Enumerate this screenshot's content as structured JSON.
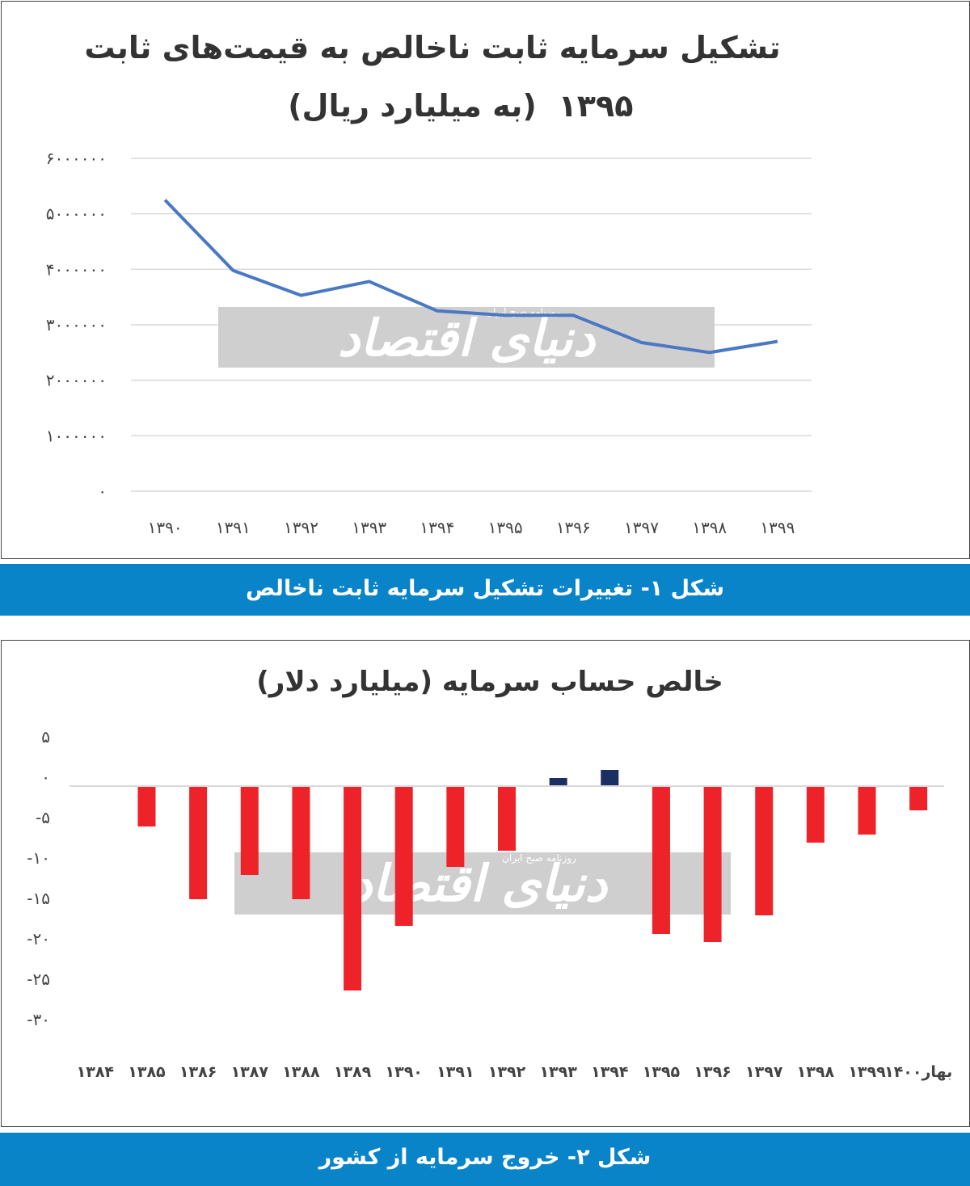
{
  "watermark": {
    "brand": "دنیای اقتصاد",
    "tagline": "روزنامه صبح ایران"
  },
  "figure1": {
    "caption": "شکل ۱- تغییرات تشکیل سرمایه ثابت ناخالص"
  },
  "figure2": {
    "caption": "شکل ۲- خروج سرمایه از کشور"
  },
  "chart_data": [
    {
      "type": "line",
      "title": "تشکیل سرمایه ثابت ناخالص به قیمت‌های ثابت",
      "subtitle_year": "۱۳۹۵",
      "subtitle_unit": "(به میلیارد ریال)",
      "categories": [
        "۱۳۹۰",
        "۱۳۹۱",
        "۱۳۹۲",
        "۱۳۹۳",
        "۱۳۹۴",
        "۱۳۹۵",
        "۱۳۹۶",
        "۱۳۹۷",
        "۱۳۹۸",
        "۱۳۹۹"
      ],
      "values": [
        5250000,
        3980000,
        3530000,
        3780000,
        3250000,
        3170000,
        3170000,
        2680000,
        2500000,
        2700000
      ],
      "yticks": [
        "۰",
        "۱۰۰۰۰۰۰",
        "۲۰۰۰۰۰۰",
        "۳۰۰۰۰۰۰",
        "۴۰۰۰۰۰۰",
        "۵۰۰۰۰۰۰",
        "۶۰۰۰۰۰۰"
      ],
      "ylim": [
        0,
        6000000
      ],
      "grid": true,
      "line_color": "#4a78c2"
    },
    {
      "type": "bar",
      "title": "خالص حساب سرمایه (میلیارد دلار)",
      "categories": [
        "۱۳۸۴",
        "۱۳۸۵",
        "۱۳۸۶",
        "۱۳۸۷",
        "۱۳۸۸",
        "۱۳۸۹",
        "۱۳۹۰",
        "۱۳۹۱",
        "۱۳۹۲",
        "۱۳۹۳",
        "۱۳۹۴",
        "۱۳۹۵",
        "۱۳۹۶",
        "۱۳۹۷",
        "۱۳۹۸",
        "۱۳۹۹",
        "بهار۱۴۰۰"
      ],
      "values": [
        0,
        -5,
        -14,
        -11,
        -14,
        -25.3,
        -17.3,
        -10,
        -8,
        1,
        2,
        -18.3,
        -19.3,
        -16,
        -7,
        -6,
        -3
      ],
      "yticks": [
        "۵",
        "۰",
        "-۵",
        "-۱۰",
        "-۱۵",
        "-۲۰",
        "-۲۵",
        "-۳۰"
      ],
      "ytick_values": [
        5,
        0,
        -5,
        -10,
        -15,
        -20,
        -25,
        -30
      ],
      "ylim": [
        -30,
        5
      ],
      "grid": false,
      "negative_color": "#ee2229",
      "positive_color": "#1c2f63"
    }
  ]
}
